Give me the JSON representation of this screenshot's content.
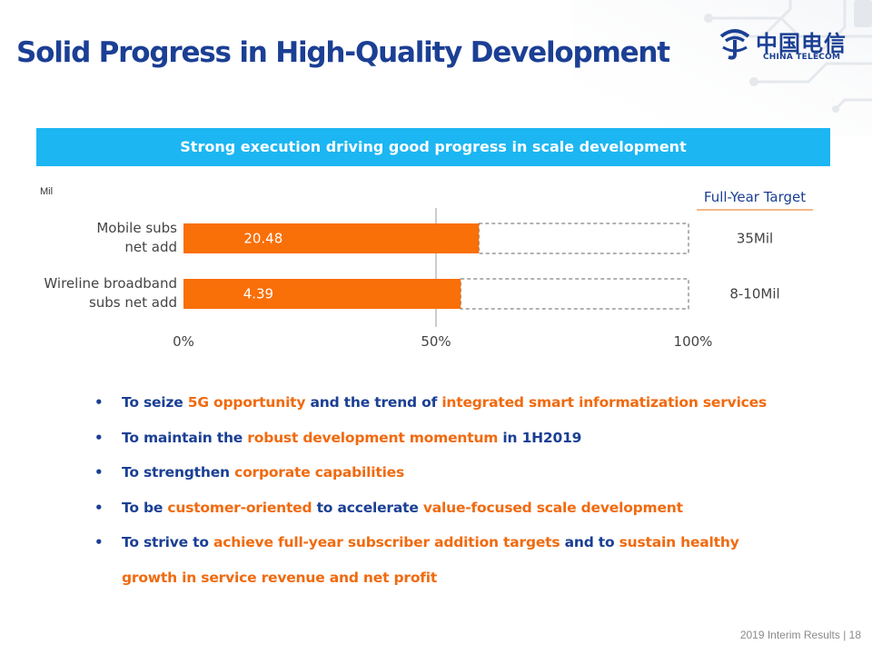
{
  "slide": {
    "title": "Solid Progress in High-Quality Development",
    "banner": "Strong execution driving good progress in scale development",
    "footer": "2019 Interim Results | 18",
    "logo": {
      "cn": "中国电信",
      "en": "CHINA TELECOM",
      "icon": "china-telecom-logo-icon"
    },
    "colors": {
      "title": "#1b3f94",
      "accent": "#f06a0f",
      "banner": "#1cb6f2"
    }
  },
  "chart_data": {
    "type": "bar",
    "orientation": "horizontal",
    "unit_label": "Mil",
    "categories": [
      "Mobile subs net add",
      "Wireline broadband subs net add"
    ],
    "category_lines": [
      [
        "Mobile subs",
        "net add"
      ],
      [
        "Wireline broadband",
        "subs net add"
      ]
    ],
    "values_label": [
      "20.48",
      "4.39"
    ],
    "progress_percent": [
      58.5,
      54.9
    ],
    "target_header": "Full-Year Target",
    "targets": [
      "35Mil",
      "8-10Mil"
    ],
    "ticks": [
      "0%",
      "50%",
      "100%"
    ],
    "xlim": [
      0,
      100
    ],
    "grid": false,
    "colors": {
      "bar": "#f96f08",
      "remainder_border": "#666666",
      "midline": "#999999"
    }
  },
  "bullets": [
    [
      {
        "text": "To seize ",
        "hl": false
      },
      {
        "text": "5G opportunity",
        "hl": true
      },
      {
        "text": " and the trend of ",
        "hl": false
      },
      {
        "text": "integrated smart informatization services",
        "hl": true
      }
    ],
    [
      {
        "text": "To maintain the ",
        "hl": false
      },
      {
        "text": "robust development momentum",
        "hl": true
      },
      {
        "text": " in 1H2019",
        "hl": false
      }
    ],
    [
      {
        "text": "To strengthen ",
        "hl": false
      },
      {
        "text": "corporate capabilities",
        "hl": true
      }
    ],
    [
      {
        "text": "To be ",
        "hl": false
      },
      {
        "text": "customer-oriented",
        "hl": true
      },
      {
        "text": " to accelerate ",
        "hl": false
      },
      {
        "text": "value-focused scale development",
        "hl": true
      }
    ],
    [
      {
        "text": "To strive to ",
        "hl": false
      },
      {
        "text": "achieve full-year subscriber addition targets",
        "hl": true
      },
      {
        "text": " and to ",
        "hl": false
      },
      {
        "text": "sustain healthy growth in service revenue and net profit",
        "hl": true
      }
    ]
  ]
}
